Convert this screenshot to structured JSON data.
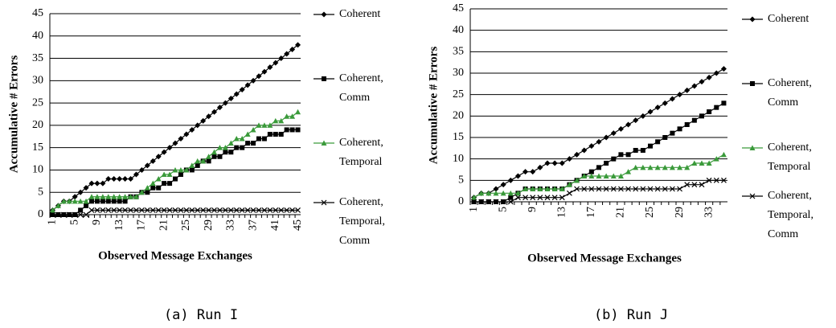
{
  "chart_data": [
    {
      "type": "line",
      "caption": "(a) Run I",
      "ylabel": "Accumulative # Errors",
      "xlabel": "Observed Message Exchanges",
      "categories": [
        1,
        null,
        null,
        null,
        5,
        null,
        null,
        null,
        9,
        null,
        null,
        null,
        13,
        null,
        null,
        null,
        17,
        null,
        null,
        null,
        21,
        null,
        null,
        null,
        25,
        null,
        null,
        null,
        29,
        null,
        null,
        null,
        33,
        null,
        null,
        null,
        37,
        null,
        null,
        null,
        41,
        null,
        null,
        null,
        45
      ],
      "ylim": [
        0,
        45
      ],
      "yticks": [
        0,
        5,
        10,
        15,
        20,
        25,
        30,
        35,
        40,
        45
      ],
      "grid": true,
      "series": [
        {
          "name": "Coherent",
          "color": "#000000",
          "marker": "diamond",
          "values": [
            1,
            2,
            3,
            3,
            4,
            5,
            6,
            7,
            7,
            7,
            8,
            8,
            8,
            8,
            8,
            9,
            10,
            11,
            12,
            13,
            14,
            15,
            16,
            17,
            18,
            19,
            20,
            21,
            22,
            23,
            24,
            25,
            26,
            27,
            28,
            29,
            30,
            31,
            32,
            33,
            34,
            35,
            36,
            37,
            38
          ]
        },
        {
          "name": "Coherent, Comm",
          "color": "#000000",
          "marker": "square",
          "values": [
            0,
            0,
            0,
            0,
            0,
            1,
            2,
            3,
            3,
            3,
            3,
            3,
            3,
            3,
            4,
            4,
            5,
            5,
            6,
            6,
            7,
            7,
            8,
            9,
            10,
            10,
            11,
            12,
            12,
            13,
            13,
            14,
            14,
            15,
            15,
            16,
            16,
            17,
            17,
            18,
            18,
            18,
            19,
            19,
            19
          ]
        },
        {
          "name": "Coherent, Temporal",
          "color": "#3a9a3a",
          "marker": "triangle",
          "values": [
            1,
            2,
            3,
            3,
            3,
            3,
            3,
            4,
            4,
            4,
            4,
            4,
            4,
            4,
            4,
            4,
            5,
            6,
            7,
            8,
            9,
            9,
            10,
            10,
            10,
            11,
            12,
            12,
            13,
            14,
            15,
            15,
            16,
            17,
            17,
            18,
            19,
            20,
            20,
            20,
            21,
            21,
            22,
            22,
            23
          ]
        },
        {
          "name": "Coherent, Temporal, Comm",
          "color": "#000000",
          "marker": "x",
          "values": [
            0,
            0,
            0,
            0,
            0,
            0,
            0,
            1,
            1,
            1,
            1,
            1,
            1,
            1,
            1,
            1,
            1,
            1,
            1,
            1,
            1,
            1,
            1,
            1,
            1,
            1,
            1,
            1,
            1,
            1,
            1,
            1,
            1,
            1,
            1,
            1,
            1,
            1,
            1,
            1,
            1,
            1,
            1,
            1,
            1
          ]
        }
      ]
    },
    {
      "type": "line",
      "caption": "(b) Run J",
      "ylabel": "Accumulative # Errors",
      "xlabel": "Observed Message Exchanges",
      "categories": [
        1,
        null,
        null,
        null,
        5,
        null,
        null,
        null,
        9,
        null,
        null,
        null,
        13,
        null,
        null,
        null,
        17,
        null,
        null,
        null,
        21,
        null,
        null,
        null,
        25,
        null,
        null,
        null,
        29,
        null,
        null,
        null,
        33,
        null,
        null
      ],
      "ylim": [
        0,
        45
      ],
      "yticks": [
        0,
        5,
        10,
        15,
        20,
        25,
        30,
        35,
        40,
        45
      ],
      "grid": true,
      "series": [
        {
          "name": "Coherent",
          "color": "#000000",
          "marker": "diamond",
          "values": [
            1,
            2,
            2,
            3,
            4,
            5,
            6,
            7,
            7,
            8,
            9,
            9,
            9,
            10,
            11,
            12,
            13,
            14,
            15,
            16,
            17,
            18,
            19,
            20,
            21,
            22,
            23,
            24,
            25,
            26,
            27,
            28,
            29,
            30,
            31
          ]
        },
        {
          "name": "Coherent, Comm",
          "color": "#000000",
          "marker": "square",
          "values": [
            0,
            0,
            0,
            0,
            0,
            1,
            2,
            3,
            3,
            3,
            3,
            3,
            3,
            4,
            5,
            6,
            7,
            8,
            9,
            10,
            11,
            11,
            12,
            12,
            13,
            14,
            15,
            16,
            17,
            18,
            19,
            20,
            21,
            22,
            23
          ]
        },
        {
          "name": "Coherent, Temporal",
          "color": "#3a9a3a",
          "marker": "triangle",
          "values": [
            1,
            2,
            2,
            2,
            2,
            2,
            2,
            3,
            3,
            3,
            3,
            3,
            3,
            4,
            5,
            6,
            6,
            6,
            6,
            6,
            6,
            7,
            8,
            8,
            8,
            8,
            8,
            8,
            8,
            8,
            9,
            9,
            9,
            10,
            11
          ]
        },
        {
          "name": "Coherent, Temporal, Comm",
          "color": "#000000",
          "marker": "x",
          "values": [
            0,
            0,
            0,
            0,
            0,
            0,
            1,
            1,
            1,
            1,
            1,
            1,
            1,
            2,
            3,
            3,
            3,
            3,
            3,
            3,
            3,
            3,
            3,
            3,
            3,
            3,
            3,
            3,
            3,
            4,
            4,
            4,
            5,
            5,
            5
          ]
        }
      ]
    }
  ]
}
